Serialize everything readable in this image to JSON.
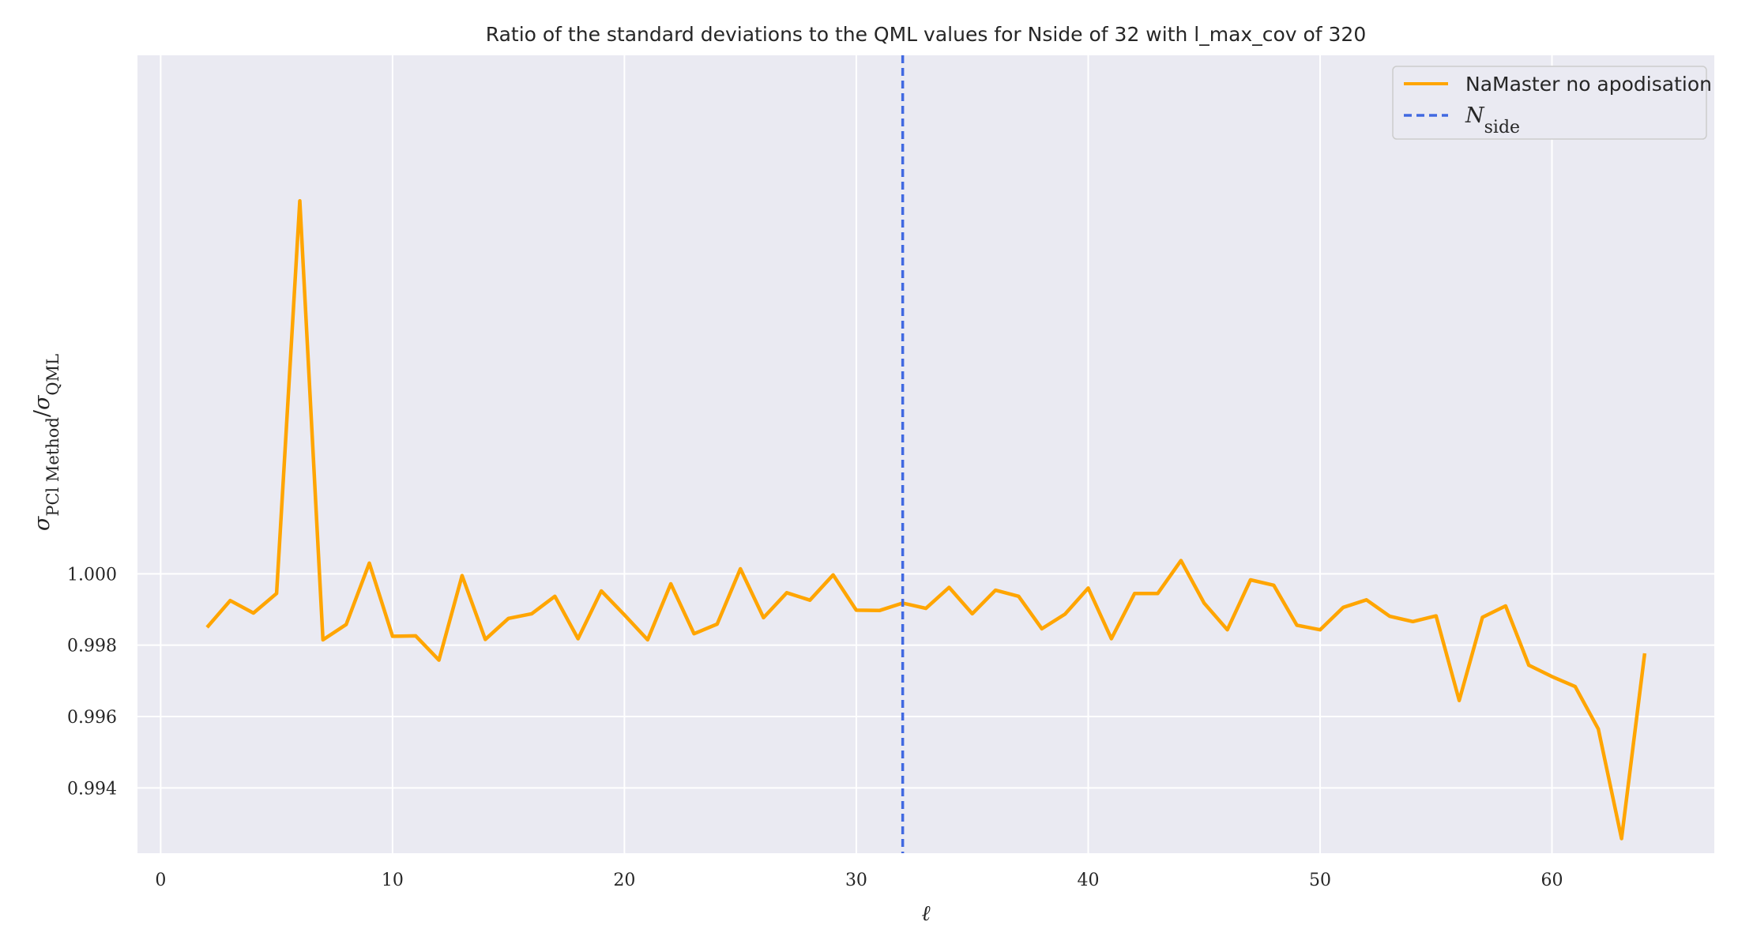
{
  "chart_data": {
    "type": "line",
    "title": "Ratio of the standard deviations to the QML values for Nside of 32 with l_max_cov of 320",
    "xlabel": "ℓ",
    "ylabel": {
      "sigma": "σ",
      "numerator_sub": "PCl Method",
      "slash": "/",
      "denominator_sub": "QML"
    },
    "xlim": [
      -1,
      67
    ],
    "ylim": [
      0.99217,
      1.01453
    ],
    "x_ticks": [
      0,
      10,
      20,
      30,
      40,
      50,
      60
    ],
    "y_ticks": [
      0.994,
      0.996,
      0.998,
      1.0
    ],
    "y_tick_labels": [
      "0.994",
      "0.996",
      "0.998",
      "1.000"
    ],
    "grid": true,
    "legend_position": "top-right",
    "series": [
      {
        "name": "NaMaster no apodisation",
        "color": "#FFA500",
        "style": "solid",
        "x": [
          2,
          3,
          4,
          5,
          6,
          7,
          8,
          9,
          10,
          11,
          12,
          13,
          14,
          15,
          16,
          17,
          18,
          19,
          20,
          21,
          22,
          23,
          24,
          25,
          26,
          27,
          28,
          29,
          30,
          31,
          32,
          33,
          34,
          35,
          36,
          37,
          38,
          39,
          40,
          41,
          42,
          43,
          44,
          45,
          46,
          47,
          48,
          49,
          50,
          51,
          52,
          53,
          54,
          55,
          56,
          57,
          58,
          59,
          60,
          61,
          62,
          63,
          64
        ],
        "y": [
          0.9985,
          0.99925,
          0.9989,
          0.99945,
          1.01045,
          0.99815,
          0.99858,
          1.0003,
          0.99825,
          0.99826,
          0.99758,
          0.99995,
          0.99816,
          0.99875,
          0.99888,
          0.99937,
          0.99818,
          0.99952,
          0.99885,
          0.99815,
          0.99972,
          0.99832,
          0.99859,
          1.00014,
          0.99877,
          0.99947,
          0.99926,
          0.99997,
          0.99898,
          0.99897,
          0.99918,
          0.99903,
          0.99962,
          0.99888,
          0.99954,
          0.99937,
          0.99846,
          0.99887,
          0.9996,
          0.99818,
          0.99945,
          0.99945,
          1.00037,
          0.99918,
          0.99843,
          0.99983,
          0.99968,
          0.99856,
          0.99843,
          0.99906,
          0.99927,
          0.99881,
          0.99866,
          0.99882,
          0.99645,
          0.99878,
          0.9991,
          0.99744,
          0.99712,
          0.99684,
          0.99565,
          0.99258,
          0.99777
        ]
      }
    ],
    "vlines": [
      {
        "name": "N_side",
        "legend_main": "N",
        "legend_sub": "side",
        "x": 32,
        "color": "#4169E1",
        "style": "dashed"
      }
    ],
    "colors": {
      "plot_background": "#EAEAF2",
      "grid": "#FFFFFF"
    }
  }
}
